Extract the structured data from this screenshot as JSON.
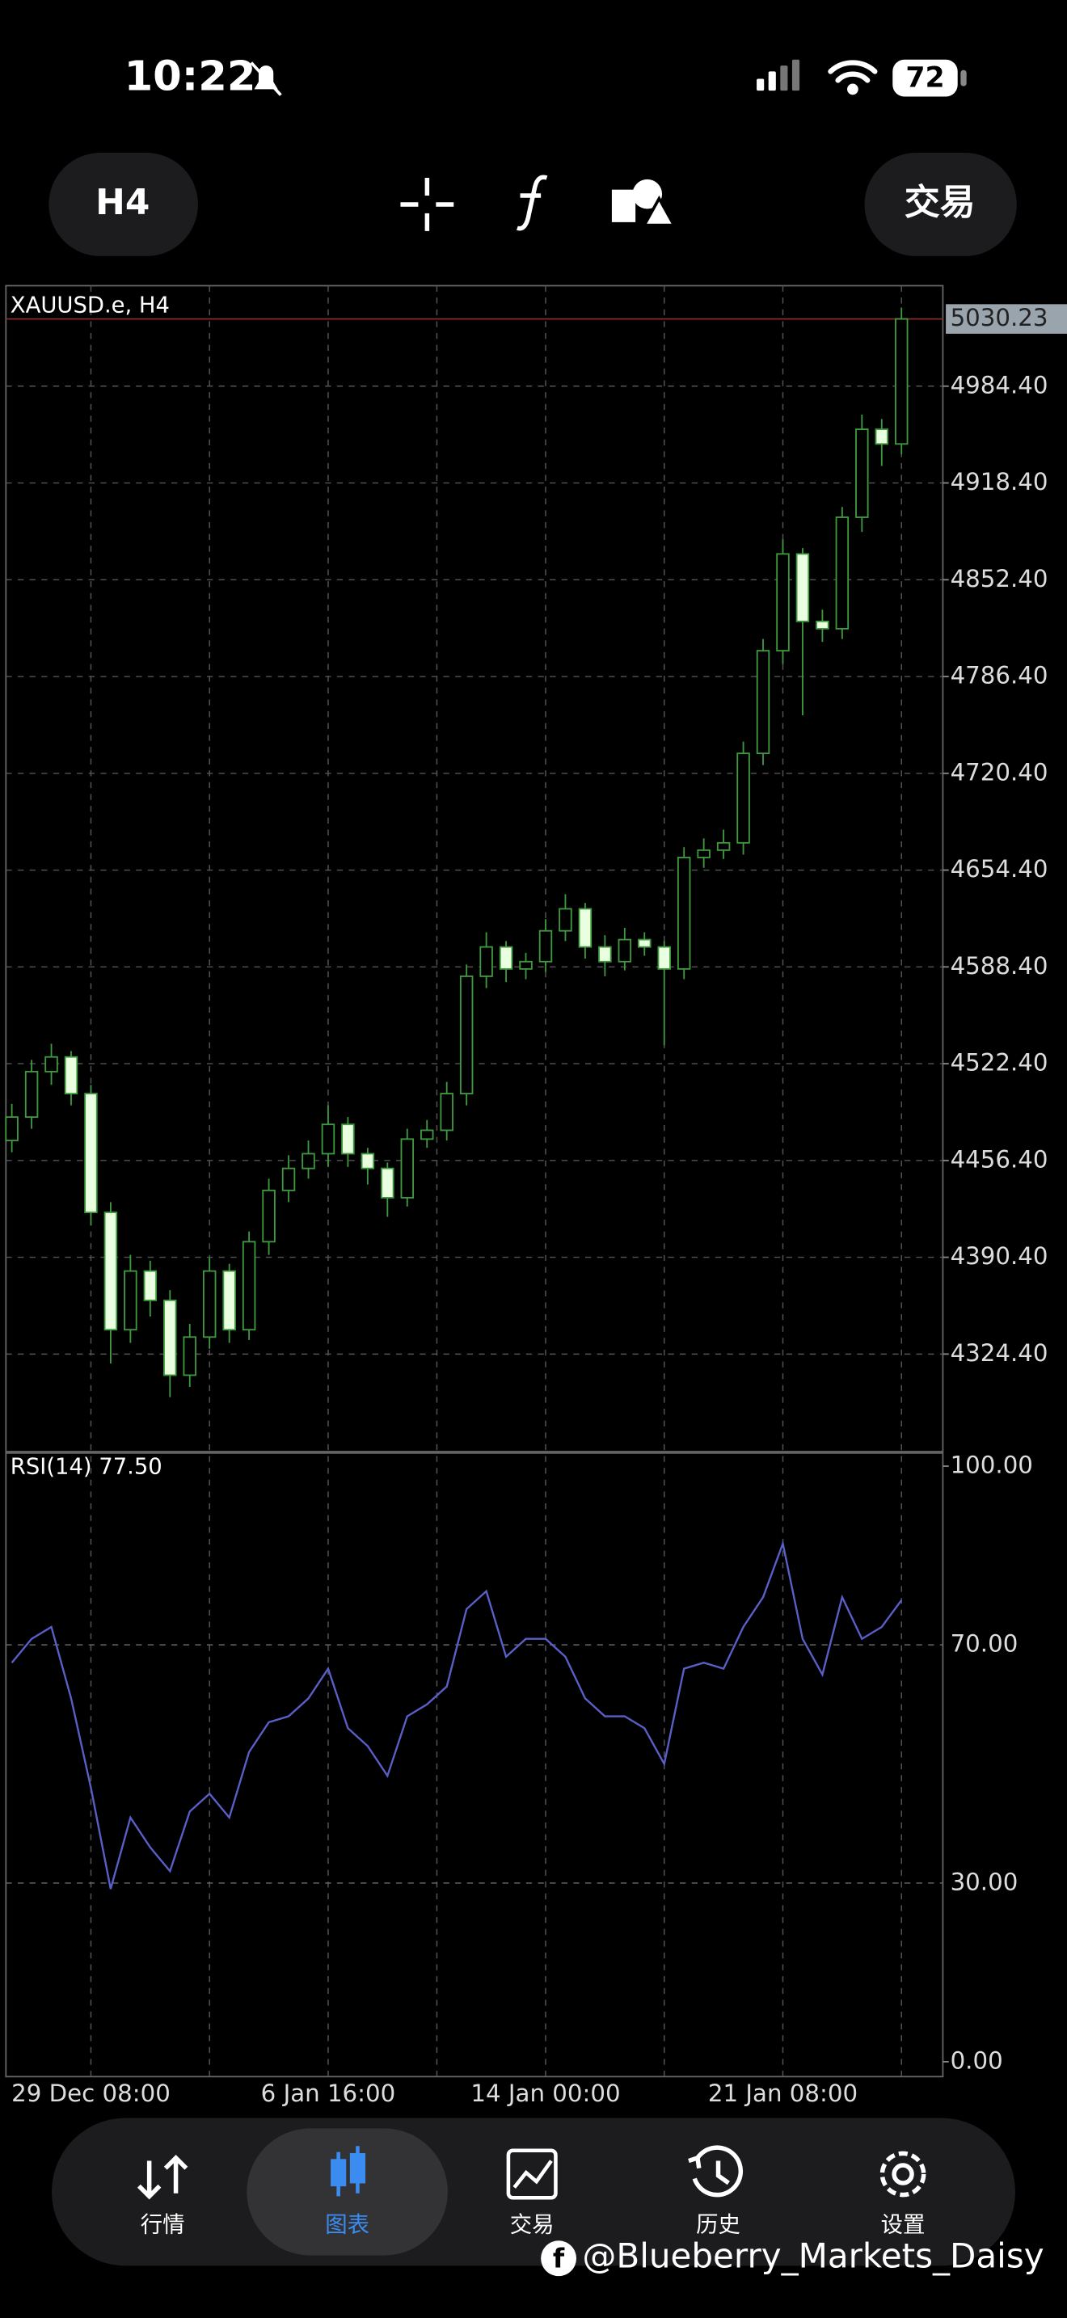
{
  "status_bar": {
    "time": "10:22",
    "battery": 72
  },
  "toolbar": {
    "timeframe": "H4",
    "trade_button": "交易"
  },
  "chart_data": {
    "type": "candlestick",
    "title": "XAUUSD.e, H4",
    "categories": [
      null,
      null,
      null,
      null,
      "29 Dec 08:00",
      null,
      null,
      null,
      null,
      null,
      null,
      null,
      null,
      null,
      null,
      null,
      "6 Jan 16:00",
      null,
      null,
      null,
      null,
      null,
      null,
      null,
      null,
      null,
      null,
      "14 Jan 00:00",
      null,
      null,
      null,
      null,
      null,
      null,
      null,
      null,
      null,
      null,
      null,
      "21 Jan 08:00",
      null,
      null,
      null,
      null,
      null,
      null
    ],
    "open": [
      4470,
      4486,
      4517,
      4527,
      4502,
      4421,
      4341,
      4381,
      4361,
      4310,
      4336,
      4381,
      4341,
      4401,
      4436,
      4451,
      4461,
      4481,
      4461,
      4451,
      4431,
      4471,
      4477,
      4502,
      4582,
      4602,
      4587,
      4592,
      4613,
      4628,
      4602,
      4592,
      4607,
      4602,
      4587,
      4663,
      4668,
      4673,
      4734,
      4804,
      4870,
      4824,
      4819,
      4895,
      4955,
      4945
    ],
    "high": [
      4495,
      4525,
      4536,
      4531,
      4508,
      4428,
      4392,
      4388,
      4368,
      4345,
      4390,
      4386,
      4408,
      4444,
      4460,
      4470,
      4494,
      4486,
      4465,
      4455,
      4478,
      4484,
      4510,
      4590,
      4612,
      4606,
      4598,
      4621,
      4638,
      4632,
      4610,
      4615,
      4612,
      4606,
      4670,
      4676,
      4682,
      4742,
      4812,
      4880,
      4874,
      4832,
      4902,
      4965,
      4962,
      5038
    ],
    "low": [
      4462,
      4478,
      4508,
      4494,
      4412,
      4318,
      4332,
      4350,
      4295,
      4302,
      4328,
      4332,
      4334,
      4392,
      4428,
      4444,
      4452,
      4452,
      4440,
      4418,
      4425,
      4465,
      4470,
      4494,
      4574,
      4578,
      4580,
      4585,
      4606,
      4594,
      4582,
      4586,
      4596,
      4535,
      4580,
      4656,
      4662,
      4665,
      4726,
      4795,
      4760,
      4810,
      4812,
      4885,
      4930,
      4938
    ],
    "close": [
      4486,
      4517,
      4527,
      4502,
      4421,
      4341,
      4381,
      4361,
      4310,
      4336,
      4381,
      4341,
      4401,
      4436,
      4451,
      4461,
      4481,
      4461,
      4451,
      4431,
      4471,
      4477,
      4502,
      4582,
      4602,
      4587,
      4592,
      4613,
      4628,
      4602,
      4592,
      4607,
      4602,
      4587,
      4663,
      4668,
      4673,
      4734,
      4804,
      4870,
      4824,
      4819,
      4895,
      4955,
      4945,
      5030.23
    ],
    "bid": 5030.23,
    "ylim": [
      4257.9,
      5052.9
    ],
    "yticks": [
      {
        "value": 4324.4,
        "label": "4324.40"
      },
      {
        "value": 4390.4,
        "label": "4390.40"
      },
      {
        "value": 4456.4,
        "label": "4456.40"
      },
      {
        "value": 4522.4,
        "label": "4522.40"
      },
      {
        "value": 4588.4,
        "label": "4588.40"
      },
      {
        "value": 4654.4,
        "label": "4654.40"
      },
      {
        "value": 4720.4,
        "label": "4720.40"
      },
      {
        "value": 4786.4,
        "label": "4786.40"
      },
      {
        "value": 4852.4,
        "label": "4852.40"
      },
      {
        "value": 4918.4,
        "label": "4918.40"
      },
      {
        "value": 4984.4,
        "label": "4984.40"
      }
    ],
    "grid": true,
    "up_color": "#3f9a3f",
    "down_color": "#eaffe0",
    "bid_color": "#8a2a2a",
    "indicator": {
      "type": "line",
      "title": "RSI(14) 77.50",
      "color": "#5a5fc8",
      "values": [
        67,
        71,
        73,
        61,
        46,
        29,
        41,
        36,
        32,
        42,
        45,
        41,
        52,
        57,
        58,
        61,
        66,
        56,
        53,
        48,
        58,
        60,
        63,
        76,
        79,
        68,
        71,
        71,
        68,
        61,
        58,
        58,
        56,
        50,
        66,
        67,
        66,
        73,
        78,
        87,
        71,
        65,
        78,
        71,
        73,
        77.5
      ],
      "ylim": [
        -2.5,
        102.2
      ],
      "yticks": [
        {
          "value": 0,
          "label": "0.00"
        },
        {
          "value": 30,
          "label": "30.00"
        },
        {
          "value": 70,
          "label": "70.00"
        },
        {
          "value": 100,
          "label": "100.00"
        }
      ]
    }
  },
  "bottom_nav": {
    "items": [
      "行情",
      "图表",
      "交易",
      "历史",
      "设置"
    ]
  },
  "watermark": "@Blueberry_Markets_Daisy"
}
